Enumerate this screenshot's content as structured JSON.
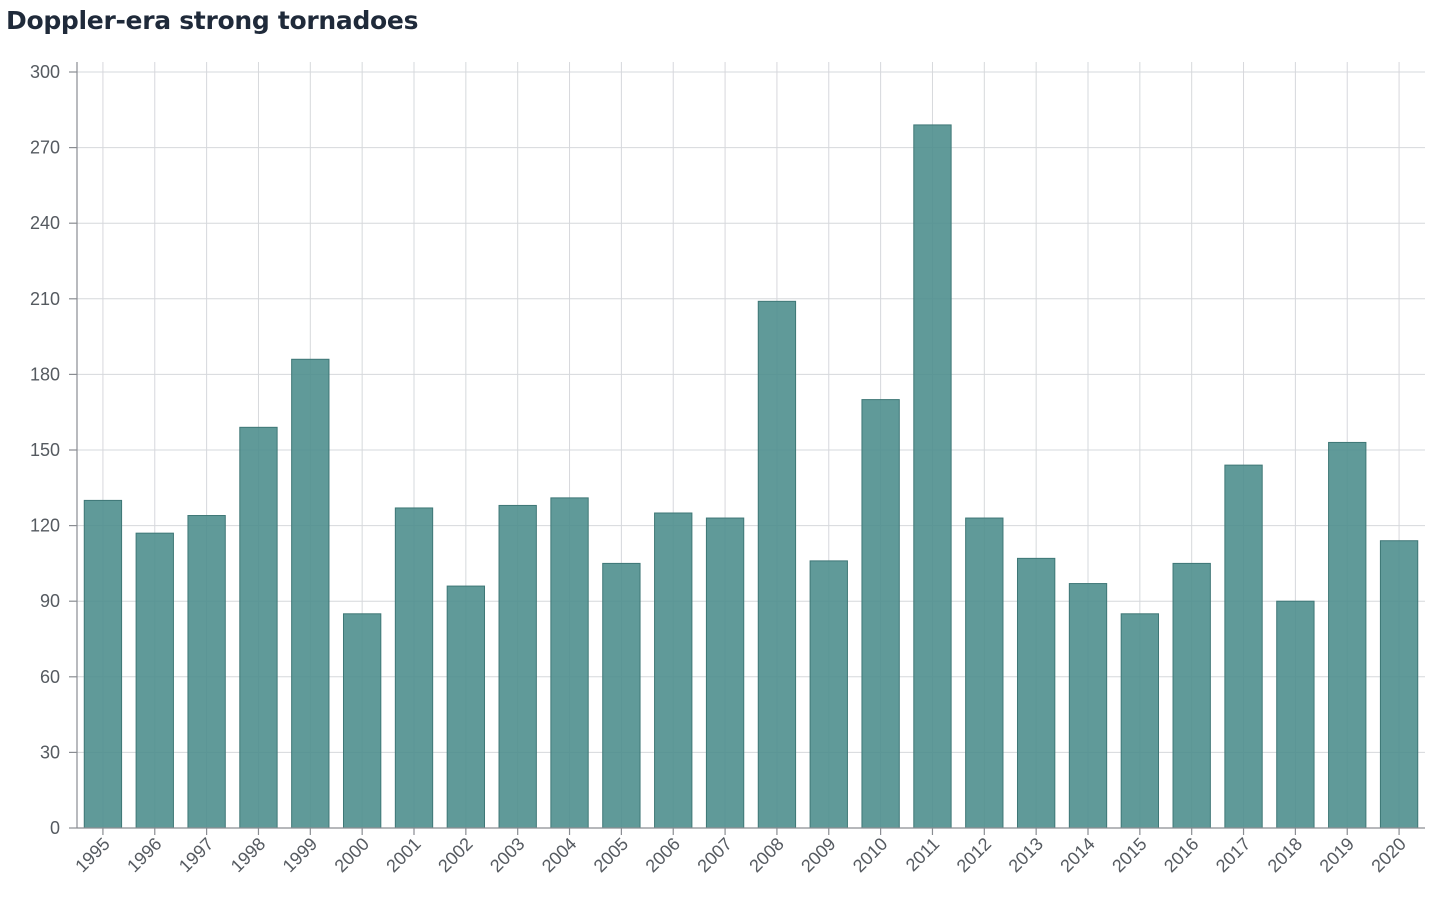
{
  "chart_data": {
    "type": "bar",
    "title": "Doppler-era strong tornadoes",
    "xlabel": "",
    "ylabel": "",
    "categories": [
      "1995",
      "1996",
      "1997",
      "1998",
      "1999",
      "2000",
      "2001",
      "2002",
      "2003",
      "2004",
      "2005",
      "2006",
      "2007",
      "2008",
      "2009",
      "2010",
      "2011",
      "2012",
      "2013",
      "2014",
      "2015",
      "2016",
      "2017",
      "2018",
      "2019",
      "2020"
    ],
    "values": [
      130,
      117,
      124,
      159,
      186,
      85,
      127,
      96,
      128,
      131,
      105,
      125,
      123,
      209,
      106,
      170,
      279,
      123,
      107,
      97,
      85,
      105,
      144,
      90,
      153,
      114
    ],
    "ylim": [
      0,
      300
    ],
    "yticks": [
      0,
      30,
      60,
      90,
      120,
      150,
      180,
      210,
      240,
      270,
      300
    ],
    "grid": true,
    "legend": "none",
    "bar_color": "#4f8f8e"
  }
}
